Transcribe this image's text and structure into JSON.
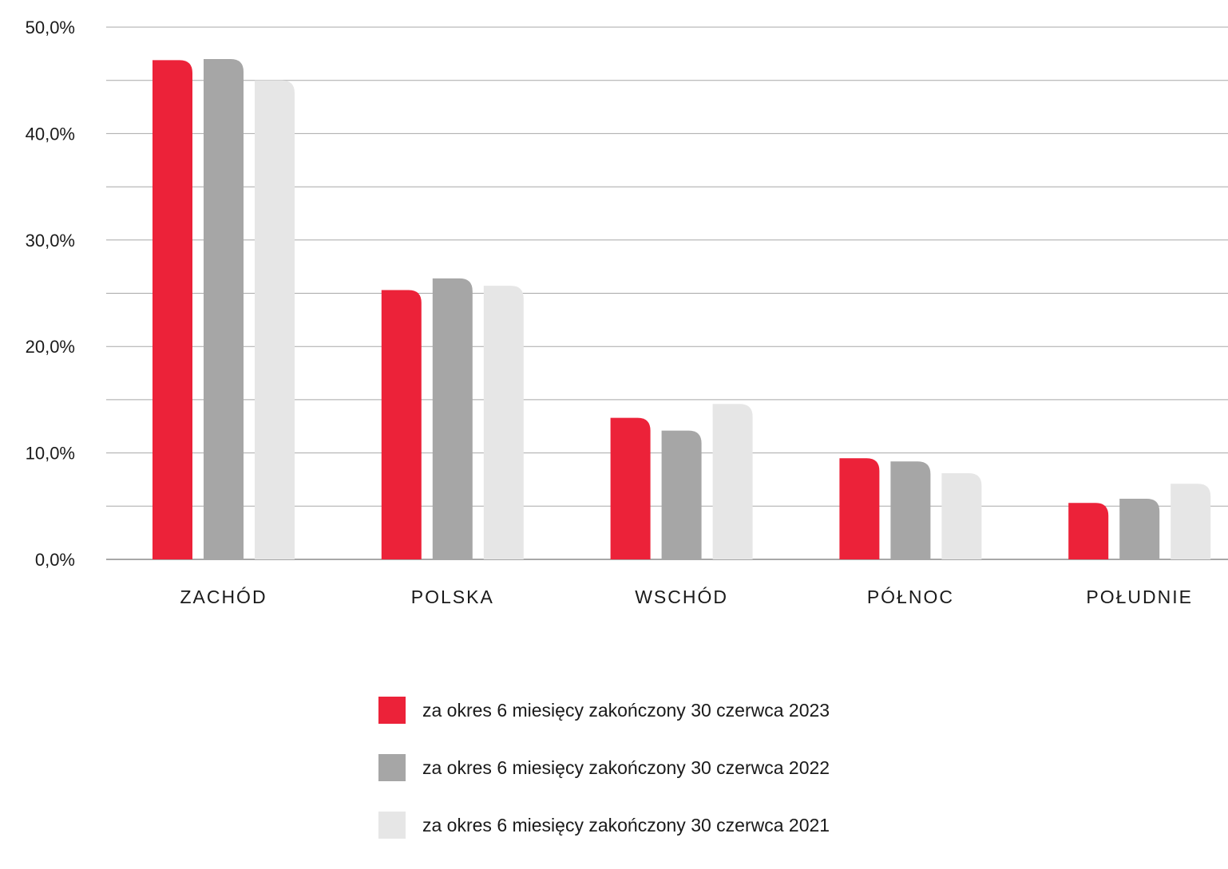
{
  "chart_data": {
    "type": "bar",
    "categories": [
      "ZACHÓD",
      "POLSKA",
      "WSCHÓD",
      "PÓŁNOC",
      "POŁUDNIE"
    ],
    "series": [
      {
        "name": "za okres 6 miesięcy zakończony 30 czerwca 2023",
        "color": "#ec2239",
        "values": [
          46.9,
          25.3,
          13.3,
          9.5,
          5.3
        ]
      },
      {
        "name": "za okres 6 miesięcy zakończony 30 czerwca 2022",
        "color": "#a6a6a6",
        "values": [
          47.0,
          26.4,
          12.1,
          9.2,
          5.7
        ]
      },
      {
        "name": "za okres 6 miesięcy zakończony 30 czerwca 2021",
        "color": "#e6e6e6",
        "values": [
          45.0,
          25.7,
          14.6,
          8.1,
          7.1
        ]
      }
    ],
    "yticks": [
      "0,0%",
      "10,0%",
      "20,0%",
      "30,0%",
      "40,0%",
      "50,0%"
    ],
    "ylim": [
      0,
      50
    ],
    "grid": true,
    "legend_position": "bottom"
  }
}
